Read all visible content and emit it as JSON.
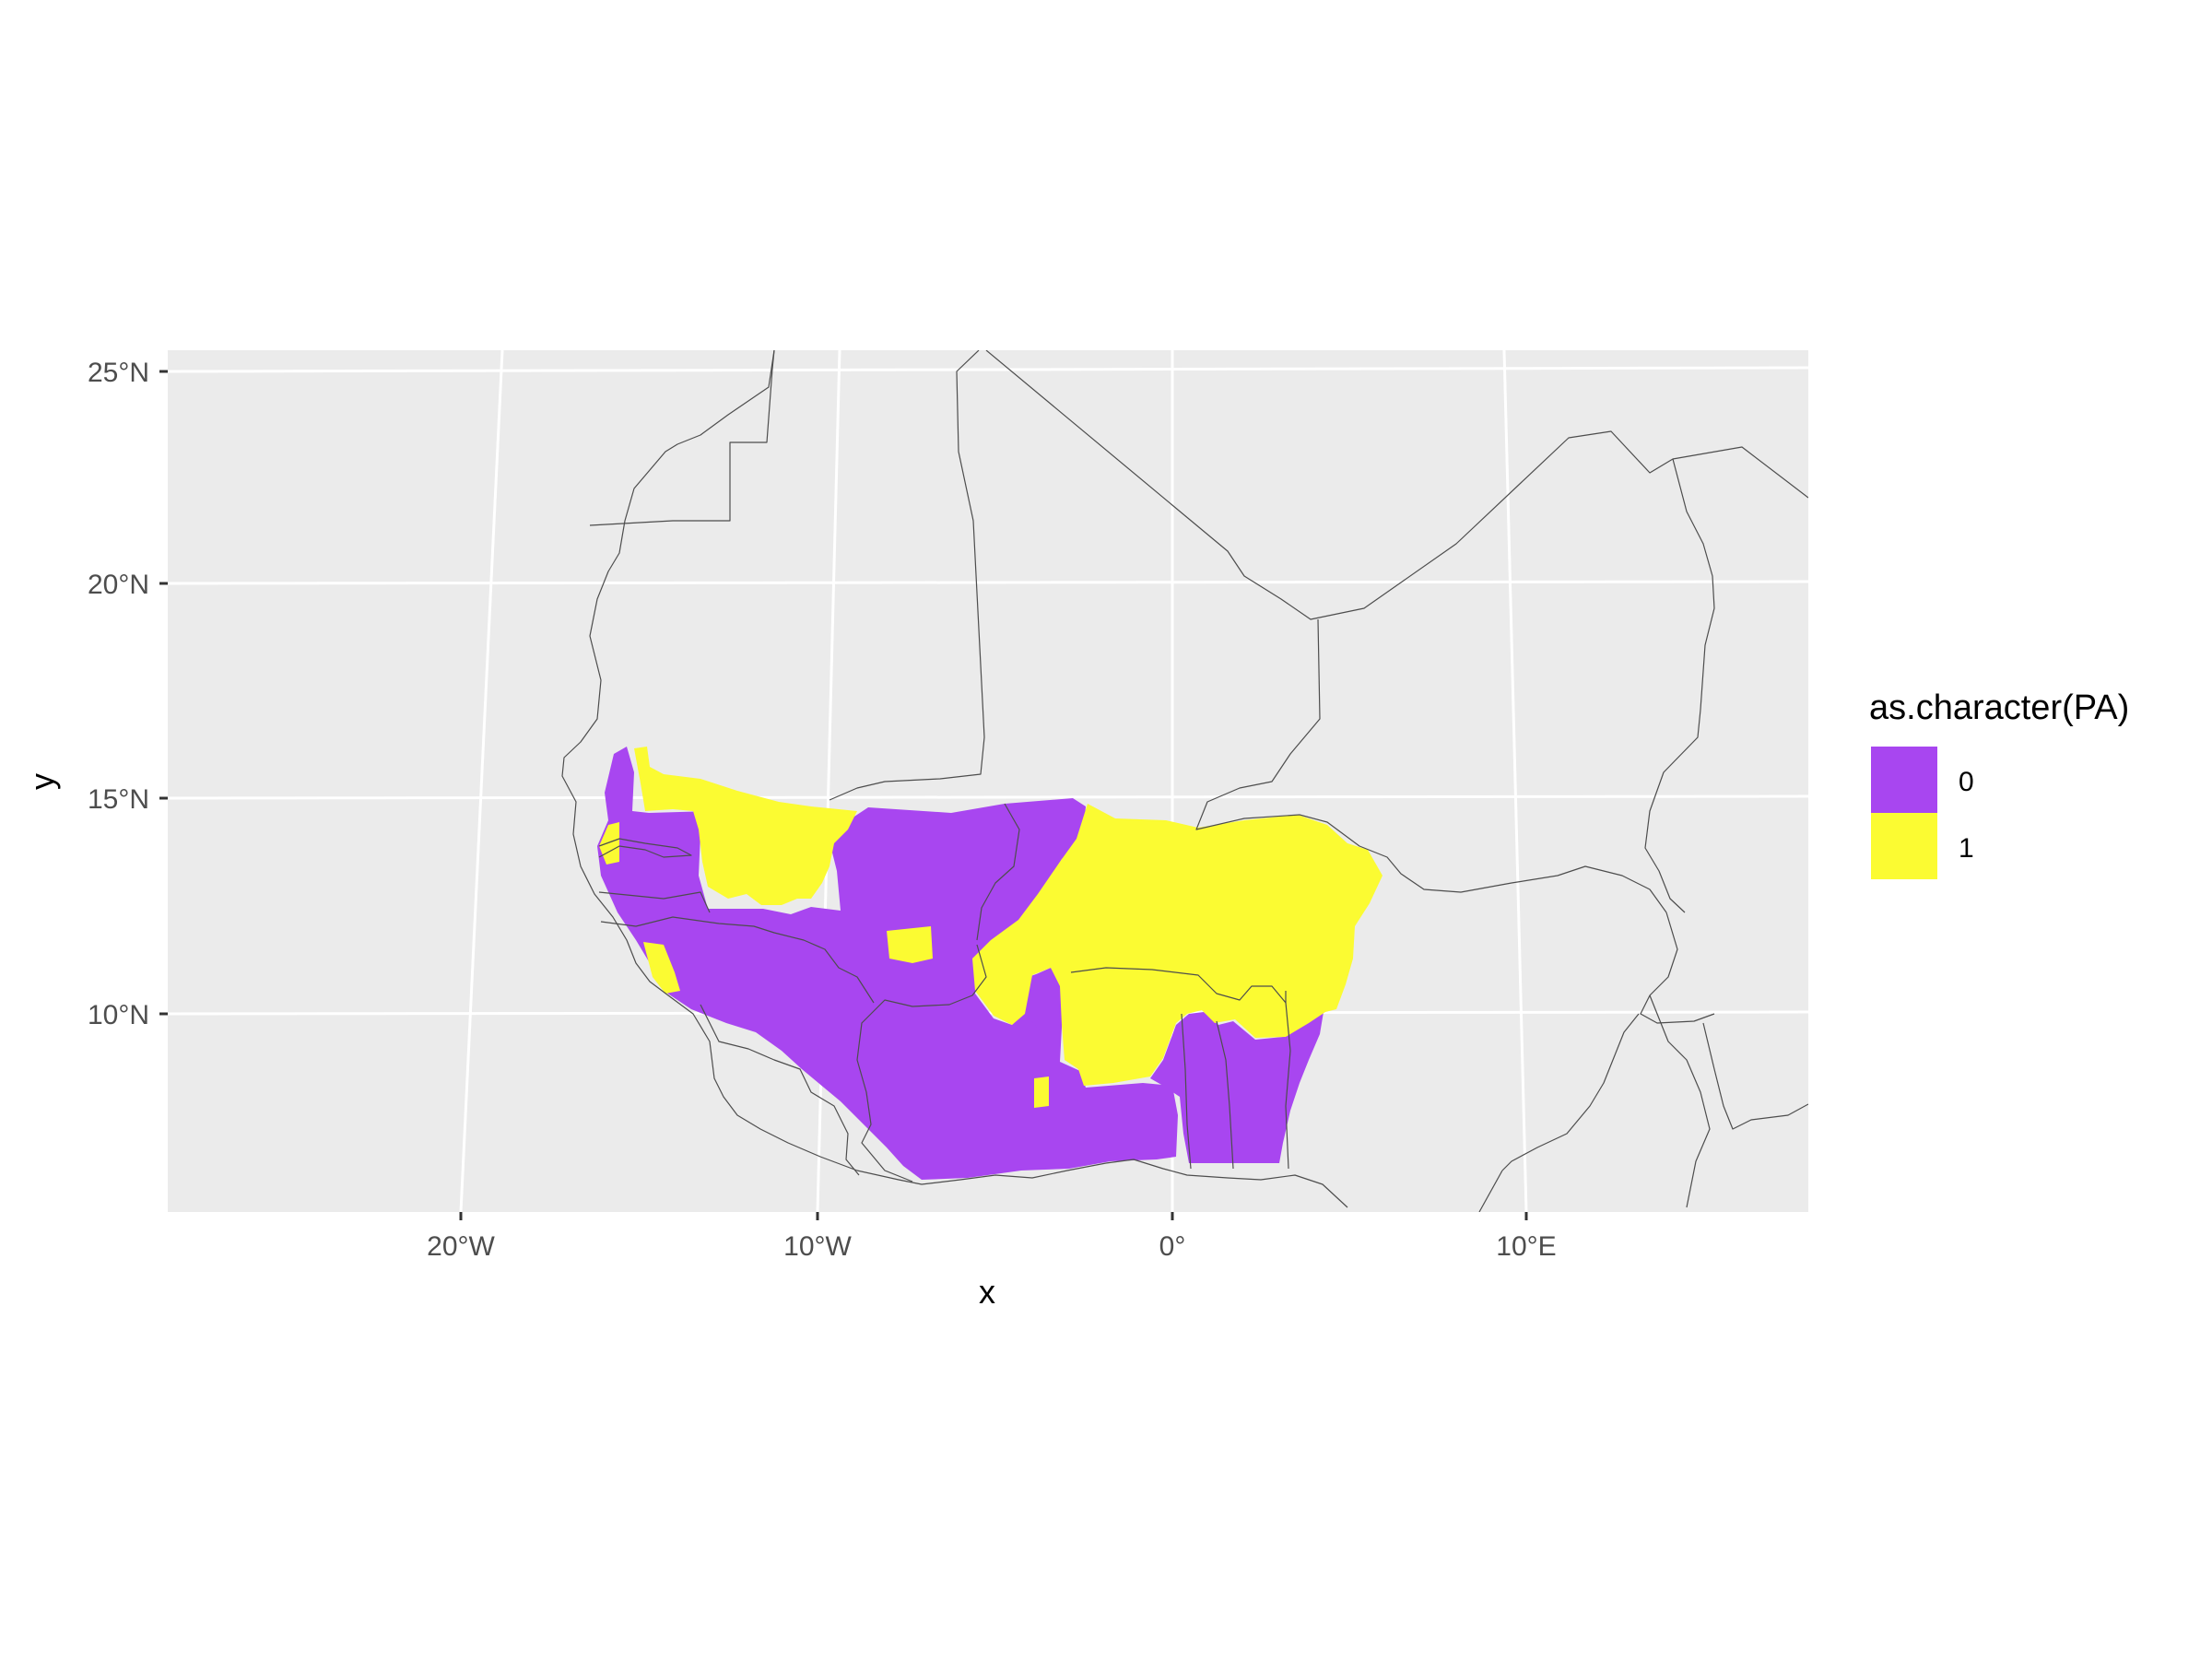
{
  "map": {
    "x_label": "x",
    "y_label": "y",
    "x_ticks": [
      "20°W",
      "10°W",
      "0°",
      "10°E"
    ],
    "y_ticks": [
      "25°N",
      "20°N",
      "15°N",
      "10°N"
    ],
    "colors": {
      "panel": "#EBEBEB",
      "grid": "#FFFFFF",
      "border": "#4D4D4D",
      "class_0": "#A846F0",
      "class_1": "#FBFB32"
    }
  },
  "legend": {
    "title": "as.character(PA)",
    "items": [
      {
        "label": "0",
        "color": "#A846F0"
      },
      {
        "label": "1",
        "color": "#FBFB32"
      }
    ]
  }
}
